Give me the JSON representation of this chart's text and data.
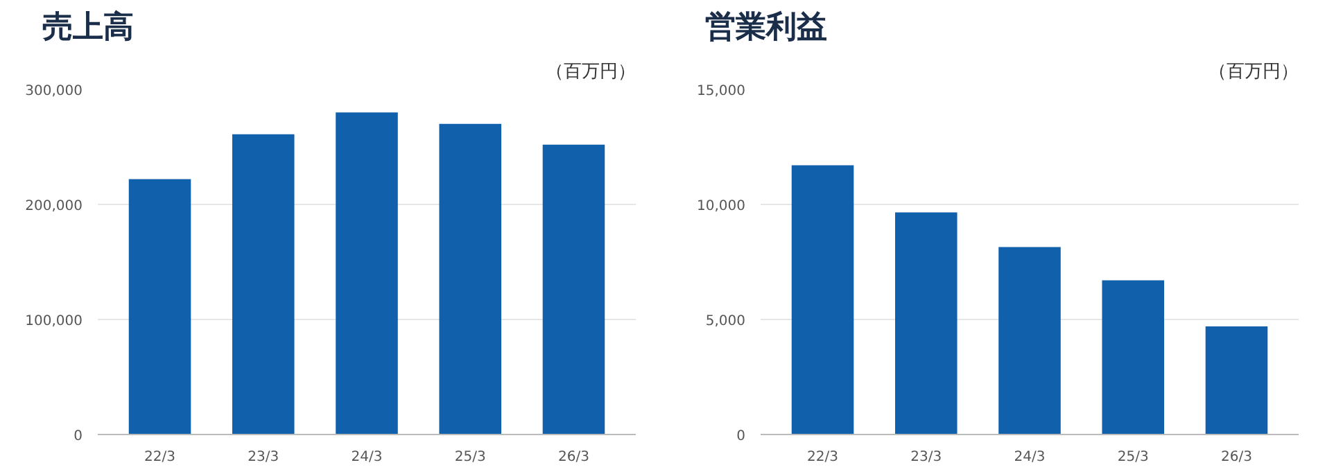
{
  "chart_data": [
    {
      "type": "bar",
      "title": "売上高",
      "annotations": [
        "（百万円）"
      ],
      "categories": [
        "22/3",
        "23/3",
        "24/3",
        "25/3",
        "26/3"
      ],
      "values": [
        222000,
        261000,
        280000,
        270000,
        252000
      ],
      "color": "#1060ab",
      "ylim": [
        0,
        300000
      ],
      "yticks": [
        {
          "value": 0,
          "label": "0"
        },
        {
          "value": 100000,
          "label": "100,000"
        },
        {
          "value": 200000,
          "label": "200,000"
        },
        {
          "value": 300000,
          "label": "300,000"
        }
      ],
      "grid": "y"
    },
    {
      "type": "bar",
      "title": "営業利益",
      "annotations": [
        "（百万円）"
      ],
      "categories": [
        "22/3",
        "23/3",
        "24/3",
        "25/3",
        "26/3"
      ],
      "values": [
        11700,
        9650,
        8150,
        6700,
        4700
      ],
      "color": "#1060ab",
      "ylim": [
        0,
        15000
      ],
      "yticks": [
        {
          "value": 0,
          "label": "0"
        },
        {
          "value": 5000,
          "label": "5,000"
        },
        {
          "value": 10000,
          "label": "10,000"
        },
        {
          "value": 15000,
          "label": "15,000"
        }
      ],
      "grid": "y"
    }
  ]
}
